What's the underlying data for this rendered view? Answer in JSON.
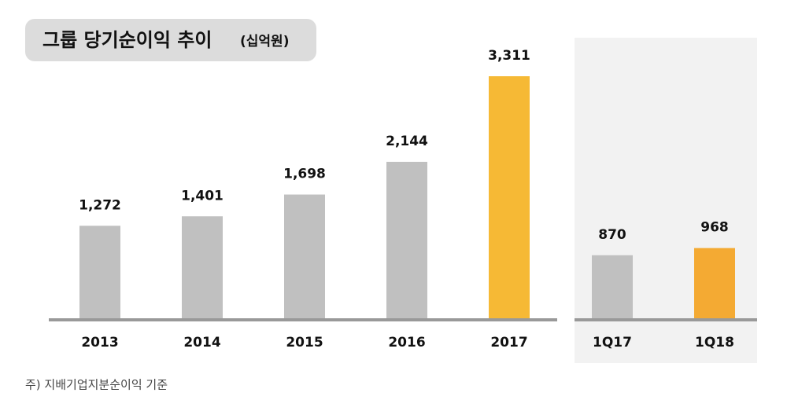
{
  "title": "그룹 당기순이익 추이",
  "unit": "(십억원)",
  "footnote": "주) 지배기업지분순이익 기준",
  "chart_data": [
    {
      "type": "bar",
      "categories": [
        "2013",
        "2014",
        "2015",
        "2016",
        "2017"
      ],
      "values": [
        1272,
        1401,
        1698,
        2144,
        3311
      ],
      "value_labels": [
        "1,272",
        "1,401",
        "1,698",
        "2,144",
        "3,311"
      ],
      "colors": [
        "#c0c0c0",
        "#c0c0c0",
        "#c0c0c0",
        "#c0c0c0",
        "#f6b935"
      ]
    },
    {
      "type": "bar",
      "categories": [
        "1Q17",
        "1Q18"
      ],
      "values": [
        870,
        968
      ],
      "colors": [
        "#c0c0c0",
        "#f4aa33"
      ]
    }
  ]
}
